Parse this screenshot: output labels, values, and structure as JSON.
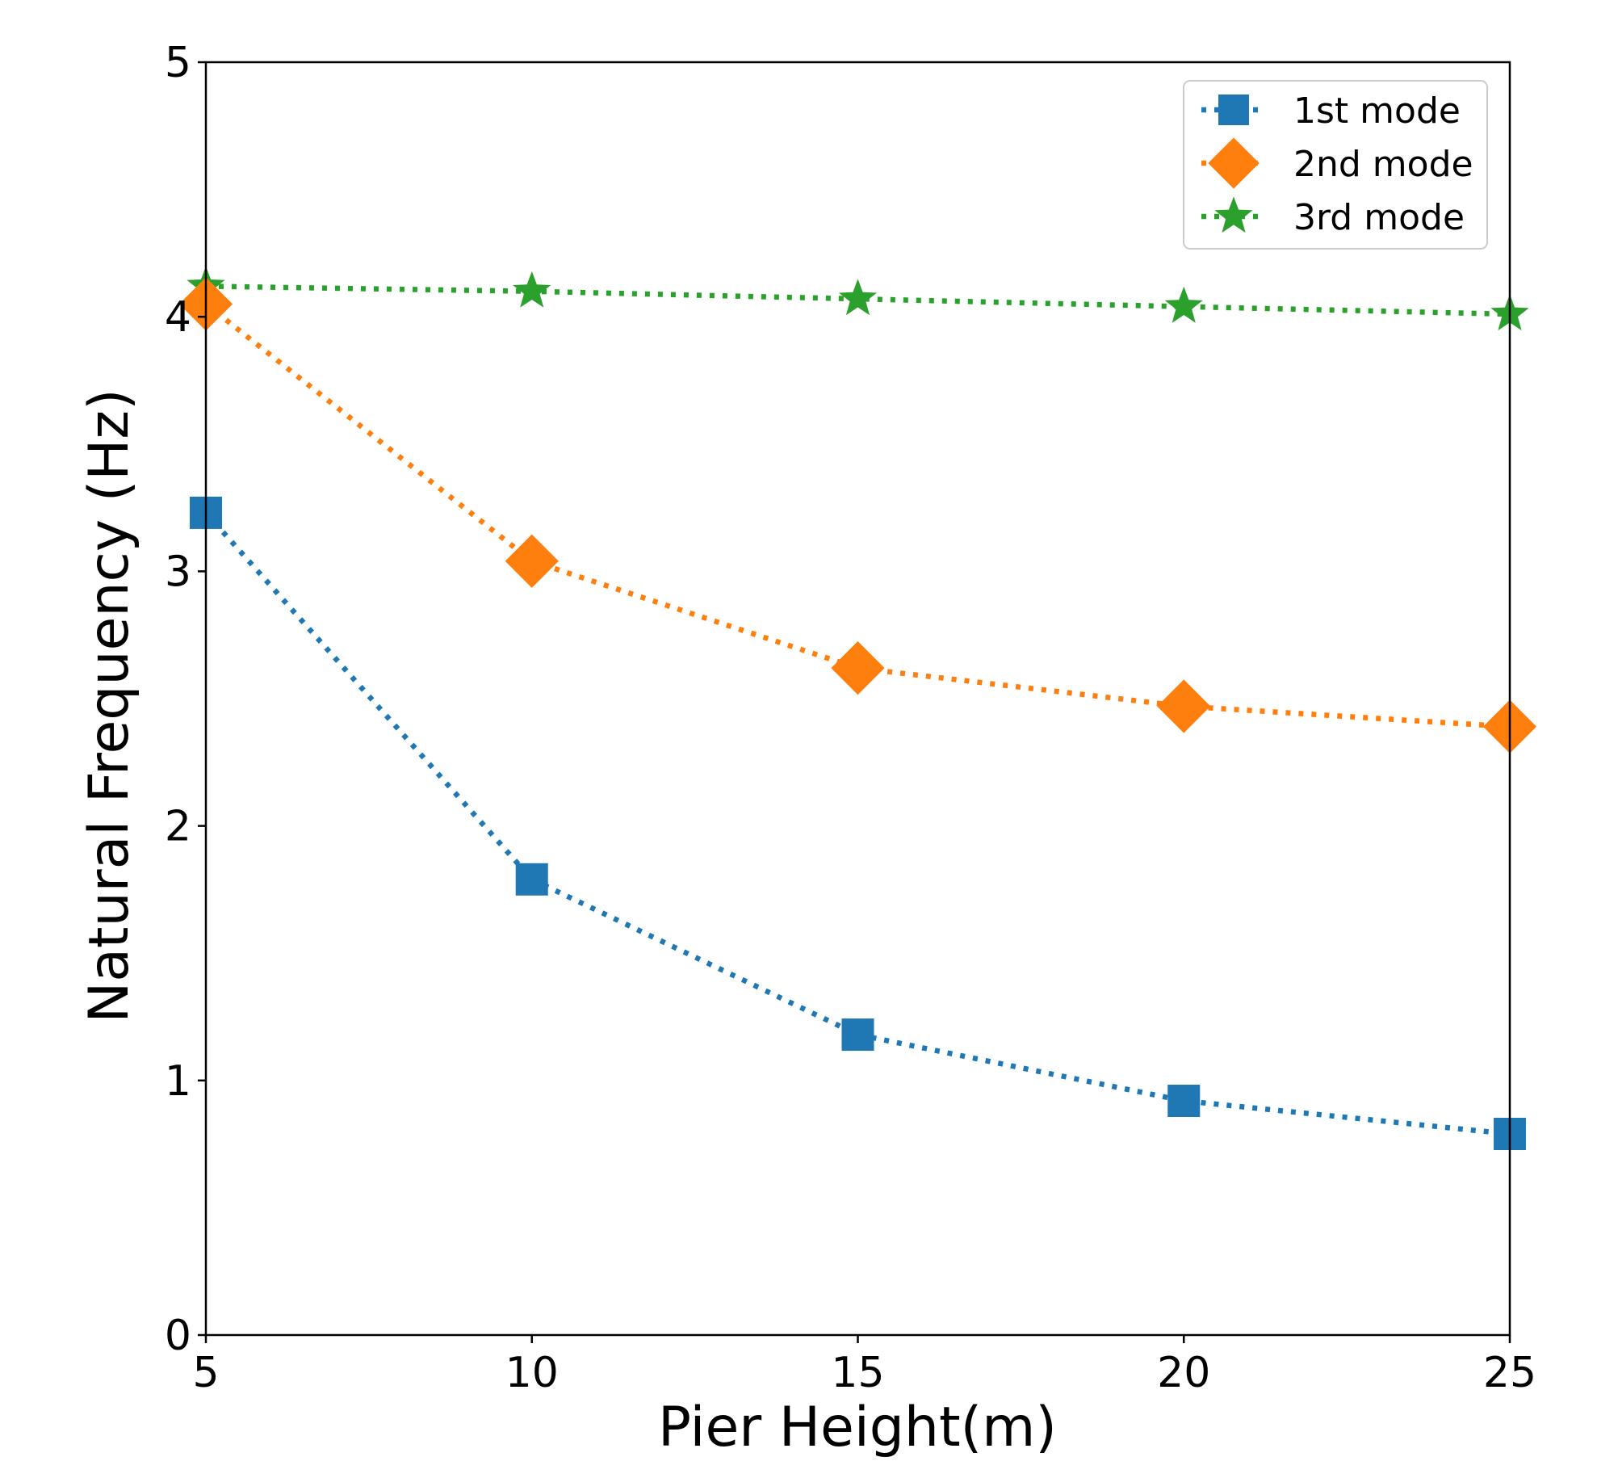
{
  "chart_data": {
    "type": "line",
    "title": "",
    "xlabel": "Pier Height(m)",
    "ylabel": "Natural Frequency (Hz)",
    "xlim": [
      5,
      25
    ],
    "ylim": [
      0,
      5
    ],
    "x_ticks": [
      5,
      10,
      15,
      20,
      25
    ],
    "y_ticks": [
      0,
      1,
      2,
      3,
      4,
      5
    ],
    "grid": false,
    "legend_position": "top-right",
    "x": [
      5,
      10,
      15,
      20,
      25
    ],
    "series": [
      {
        "name": "1st mode",
        "values": [
          3.23,
          1.79,
          1.18,
          0.92,
          0.79
        ],
        "color": "#1f77b4",
        "marker": "square",
        "line_style": "dotted"
      },
      {
        "name": "2nd mode",
        "values": [
          4.05,
          3.04,
          2.62,
          2.47,
          2.39
        ],
        "color": "#ff7f0e",
        "marker": "diamond",
        "line_style": "dotted"
      },
      {
        "name": "3rd mode",
        "values": [
          4.12,
          4.1,
          4.07,
          4.04,
          4.01
        ],
        "color": "#2ca02c",
        "marker": "star",
        "line_style": "dotted"
      }
    ]
  }
}
